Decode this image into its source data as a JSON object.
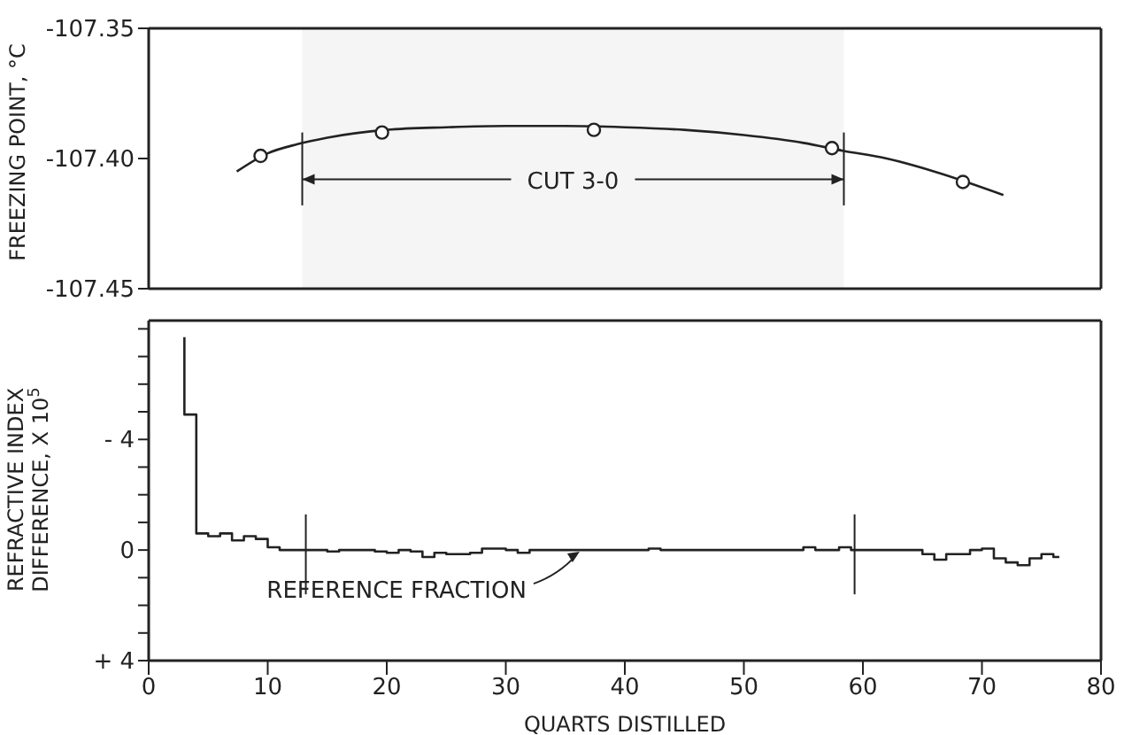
{
  "chart_data": [
    {
      "type": "line",
      "ylabel": "FREEZING POINT, °C",
      "xlim": [
        0,
        80
      ],
      "xticks": [
        0,
        10,
        20,
        30,
        40,
        50,
        60,
        70,
        80
      ],
      "ylim": [
        -107.45,
        -107.35
      ],
      "yticks": [
        {
          "value": -107.45,
          "label": "-107.45"
        },
        {
          "value": -107.4,
          "label": "-107.40"
        },
        {
          "value": -107.35,
          "label": "-107.35"
        }
      ],
      "tick_labels": "y",
      "series": [
        {
          "color": "#222222",
          "marker": "none",
          "x": [
            7.4,
            10,
            12.5,
            15,
            20,
            25,
            30,
            35,
            40,
            45,
            50,
            55,
            58.3,
            62,
            66,
            71.8
          ],
          "values": [
            -107.405,
            -107.398,
            -107.3945,
            -107.392,
            -107.389,
            -107.388,
            -107.3875,
            -107.3875,
            -107.388,
            -107.389,
            -107.391,
            -107.394,
            -107.397,
            -107.4,
            -107.405,
            -107.414
          ]
        },
        {
          "type": "scatter",
          "color": "#222222",
          "marker": "circle",
          "x": [
            9.4,
            19.6,
            37.4,
            57.4,
            68.4
          ],
          "values": [
            -107.399,
            -107.39,
            -107.389,
            -107.396,
            -107.409
          ]
        }
      ],
      "bands": [
        {
          "axis": "x",
          "from": 12.9,
          "to": 58.4,
          "label": "CUT 3-0"
        }
      ]
    },
    {
      "type": "step",
      "xlabel": "QUARTS DISTILLED",
      "ylabel": "REFRACTIVE INDEX DIFFERENCE, X 10$^{5}$",
      "xlim": [
        0,
        80
      ],
      "xticks": [
        0,
        10,
        20,
        30,
        40,
        50,
        60,
        70,
        80
      ],
      "ylim": [
        4,
        -8.3
      ],
      "yticks": [
        {
          "value": -8,
          "label": null
        },
        {
          "value": -7,
          "label": null
        },
        {
          "value": -6,
          "label": null
        },
        {
          "value": -5,
          "label": null
        },
        {
          "value": -4,
          "label": "- 4"
        },
        {
          "value": -3,
          "label": null
        },
        {
          "value": -2,
          "label": null
        },
        {
          "value": -1,
          "label": null
        },
        0,
        {
          "value": 1,
          "label": null
        },
        {
          "value": 2,
          "label": null
        },
        {
          "value": 3,
          "label": null
        },
        {
          "value": 4,
          "label": "+ 4"
        }
      ],
      "series": [
        {
          "color": "#222222",
          "x": [
            3,
            3,
            4,
            5,
            6,
            7,
            8,
            9,
            10,
            11,
            12,
            13,
            14,
            15,
            16,
            17,
            18,
            19,
            20,
            21,
            22,
            23,
            24,
            25,
            26,
            27,
            28,
            29,
            30,
            31,
            32,
            33,
            34,
            35,
            36,
            37,
            38,
            39,
            40,
            41,
            42,
            43,
            44,
            45,
            46,
            47,
            48,
            49,
            50,
            51,
            52,
            53,
            54,
            55,
            56,
            57,
            58,
            59,
            60,
            61,
            62,
            63,
            64,
            65,
            66,
            67,
            68,
            69,
            70,
            71,
            72,
            73,
            74,
            75,
            76,
            76.5
          ],
          "values": [
            -7.7,
            -4.9,
            -0.6,
            -0.5,
            -0.6,
            -0.35,
            -0.5,
            -0.4,
            -0.1,
            0,
            0,
            0,
            0,
            0.05,
            0,
            0,
            0,
            0.05,
            0.1,
            0,
            0.05,
            0.25,
            0.1,
            0.15,
            0.15,
            0.1,
            -0.05,
            -0.05,
            0,
            0.1,
            0,
            0,
            0,
            0,
            0,
            0,
            0,
            0,
            0,
            0,
            -0.05,
            0,
            0,
            0,
            0,
            0,
            0,
            0,
            0,
            0,
            0,
            0,
            0,
            -0.1,
            0,
            0,
            -0.1,
            0,
            0,
            0,
            0,
            0,
            0,
            0.15,
            0.35,
            0.15,
            0.15,
            0,
            -0.05,
            0.3,
            0.45,
            0.55,
            0.3,
            0.15,
            0.25,
            0.25
          ]
        }
      ],
      "ref_lines": [
        {
          "axis": "x",
          "value": 13.2
        },
        {
          "axis": "x",
          "value": 59.3
        }
      ],
      "annotations": [
        {
          "text": "REFERENCE FRACTION",
          "x": 36.5,
          "y": 0
        }
      ]
    }
  ]
}
